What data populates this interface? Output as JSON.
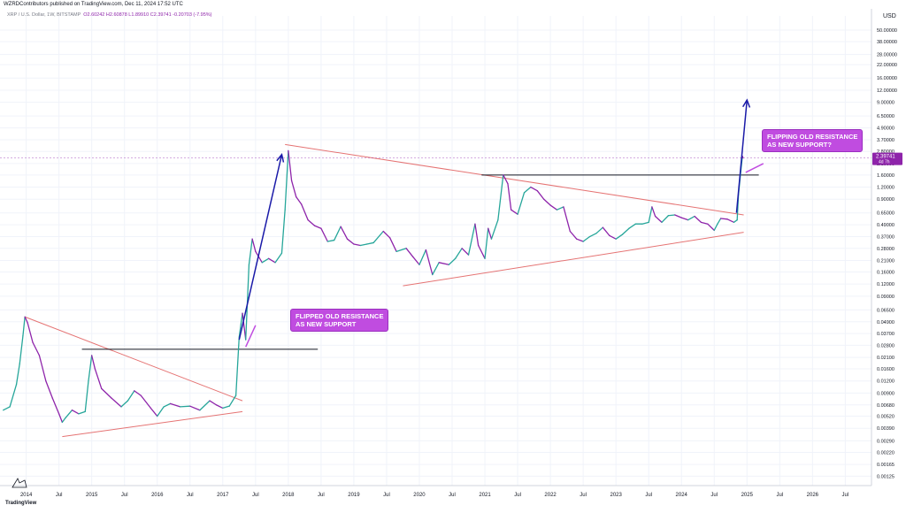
{
  "header": {
    "publisher_line": "WZRDContributors published on TradingView.com, Dec 11, 2024 17:52 UTC",
    "symbol": "XRP / U.S. Dollar, 1W, BITSTAMP",
    "open": "O2.60242",
    "high": "H2.60878",
    "low": "L1.89910",
    "close": "C2.39741",
    "change": "-0.20703 (-7.95%)"
  },
  "footer": {
    "logo_text": "TradingView"
  },
  "annotations": {
    "callout_1": [
      "FLIPPED OLD RESISTANCE",
      "AS NEW SUPPORT"
    ],
    "callout_2": [
      "FLIPPING OLD RESISTANCE",
      "AS NEW SUPPORT?"
    ]
  },
  "colors": {
    "bull": "#26a69a",
    "bear": "#8e24aa",
    "trendline": "#e57373",
    "horizontal": "#131722",
    "arrow": "#1a1aa8",
    "callout": "#c04ce0",
    "price_tag": "#8e24aa"
  },
  "chart_data": {
    "type": "line",
    "scale": "log",
    "y_unit": "USD",
    "x_ticks": [
      "2014",
      "Jul",
      "2015",
      "Jul",
      "2016",
      "Jul",
      "2017",
      "Jul",
      "2018",
      "Jul",
      "2019",
      "Jul",
      "2020",
      "Jul",
      "2021",
      "Jul",
      "2022",
      "Jul",
      "2023",
      "Jul",
      "2024",
      "Jul",
      "2025",
      "Jul",
      "2026",
      "Jul"
    ],
    "y_ticks": [
      0.00125,
      0.00165,
      0.0022,
      0.0029,
      0.0039,
      0.0052,
      0.0068,
      0.009,
      0.012,
      0.016,
      0.021,
      0.028,
      0.037,
      0.049,
      0.065,
      0.09,
      0.12,
      0.16,
      0.21,
      0.28,
      0.37,
      0.49,
      0.65,
      0.9,
      1.2,
      1.6,
      2.1,
      2.8,
      3.7,
      4.9,
      6.5,
      9.0,
      12.0,
      16.0,
      22.0,
      28.0,
      38.0,
      50.0
    ],
    "y_tick_labels": [
      "0.00125",
      "0.00165",
      "0.00220",
      "0.00290",
      "0.00390",
      "0.00520",
      "0.00680",
      "0.00900",
      "0.01200",
      "0.01600",
      "0.02100",
      "0.02800",
      "0.03700",
      "0.04900",
      "0.06500",
      "0.09000",
      "0.12000",
      "0.16000",
      "0.21000",
      "0.28000",
      "0.37000",
      "0.49000",
      "0.65000",
      "0.90000",
      "1.20000",
      "1.60000",
      "2.10000",
      "2.80000",
      "3.70000",
      "4.90000",
      "6.50000",
      "9.00000",
      "12.00000",
      "16.00000",
      "22.00000",
      "28.00000",
      "38.00000",
      "50.00000"
    ],
    "ylim": [
      0.001,
      70
    ],
    "xlim": [
      2013.6,
      2026.9
    ],
    "last_price": 2.39741,
    "last_price_label": "2.39741",
    "countdown": "4d 7h",
    "series": [
      {
        "values": [
          [
            2013.65,
            0.006
          ],
          [
            2013.75,
            0.0065
          ],
          [
            2013.85,
            0.011
          ],
          [
            2013.9,
            0.018
          ],
          [
            2013.95,
            0.035
          ],
          [
            2013.98,
            0.055
          ],
          [
            2014.02,
            0.048
          ],
          [
            2014.1,
            0.03
          ],
          [
            2014.2,
            0.022
          ],
          [
            2014.3,
            0.012
          ],
          [
            2014.4,
            0.008
          ],
          [
            2014.5,
            0.0055
          ],
          [
            2014.55,
            0.0045
          ],
          [
            2014.6,
            0.005
          ],
          [
            2014.7,
            0.006
          ],
          [
            2014.8,
            0.0055
          ],
          [
            2014.9,
            0.0058
          ],
          [
            2014.95,
            0.012
          ],
          [
            2015.0,
            0.022
          ],
          [
            2015.05,
            0.016
          ],
          [
            2015.15,
            0.01
          ],
          [
            2015.3,
            0.008
          ],
          [
            2015.45,
            0.0065
          ],
          [
            2015.55,
            0.0075
          ],
          [
            2015.65,
            0.0095
          ],
          [
            2015.75,
            0.0085
          ],
          [
            2015.9,
            0.0063
          ],
          [
            2016.0,
            0.0052
          ],
          [
            2016.1,
            0.0065
          ],
          [
            2016.2,
            0.007
          ],
          [
            2016.35,
            0.0065
          ],
          [
            2016.5,
            0.0066
          ],
          [
            2016.65,
            0.006
          ],
          [
            2016.8,
            0.0075
          ],
          [
            2016.9,
            0.0068
          ],
          [
            2017.0,
            0.0063
          ],
          [
            2017.1,
            0.0066
          ],
          [
            2017.2,
            0.0085
          ],
          [
            2017.25,
            0.034
          ],
          [
            2017.3,
            0.06
          ],
          [
            2017.35,
            0.032
          ],
          [
            2017.4,
            0.19
          ],
          [
            2017.45,
            0.35
          ],
          [
            2017.5,
            0.26
          ],
          [
            2017.6,
            0.2
          ],
          [
            2017.7,
            0.22
          ],
          [
            2017.8,
            0.2
          ],
          [
            2017.9,
            0.25
          ],
          [
            2017.95,
            0.7
          ],
          [
            2018.0,
            2.85
          ],
          [
            2018.05,
            1.4
          ],
          [
            2018.12,
            0.95
          ],
          [
            2018.2,
            0.8
          ],
          [
            2018.3,
            0.55
          ],
          [
            2018.4,
            0.48
          ],
          [
            2018.5,
            0.45
          ],
          [
            2018.6,
            0.33
          ],
          [
            2018.7,
            0.34
          ],
          [
            2018.8,
            0.47
          ],
          [
            2018.9,
            0.35
          ],
          [
            2019.0,
            0.31
          ],
          [
            2019.1,
            0.3
          ],
          [
            2019.2,
            0.31
          ],
          [
            2019.3,
            0.32
          ],
          [
            2019.45,
            0.42
          ],
          [
            2019.55,
            0.36
          ],
          [
            2019.65,
            0.26
          ],
          [
            2019.8,
            0.28
          ],
          [
            2019.9,
            0.23
          ],
          [
            2020.0,
            0.19
          ],
          [
            2020.1,
            0.27
          ],
          [
            2020.2,
            0.15
          ],
          [
            2020.3,
            0.2
          ],
          [
            2020.45,
            0.19
          ],
          [
            2020.55,
            0.22
          ],
          [
            2020.65,
            0.28
          ],
          [
            2020.75,
            0.24
          ],
          [
            2020.85,
            0.5
          ],
          [
            2020.9,
            0.3
          ],
          [
            2021.0,
            0.22
          ],
          [
            2021.05,
            0.45
          ],
          [
            2021.1,
            0.35
          ],
          [
            2021.2,
            0.55
          ],
          [
            2021.28,
            1.6
          ],
          [
            2021.35,
            1.3
          ],
          [
            2021.4,
            0.7
          ],
          [
            2021.5,
            0.63
          ],
          [
            2021.6,
            1.05
          ],
          [
            2021.7,
            1.2
          ],
          [
            2021.8,
            1.1
          ],
          [
            2021.9,
            0.9
          ],
          [
            2022.0,
            0.78
          ],
          [
            2022.1,
            0.7
          ],
          [
            2022.2,
            0.75
          ],
          [
            2022.3,
            0.42
          ],
          [
            2022.4,
            0.35
          ],
          [
            2022.5,
            0.33
          ],
          [
            2022.6,
            0.37
          ],
          [
            2022.7,
            0.4
          ],
          [
            2022.8,
            0.46
          ],
          [
            2022.9,
            0.38
          ],
          [
            2023.0,
            0.35
          ],
          [
            2023.1,
            0.39
          ],
          [
            2023.2,
            0.45
          ],
          [
            2023.3,
            0.5
          ],
          [
            2023.4,
            0.5
          ],
          [
            2023.5,
            0.52
          ],
          [
            2023.55,
            0.75
          ],
          [
            2023.6,
            0.6
          ],
          [
            2023.7,
            0.52
          ],
          [
            2023.8,
            0.61
          ],
          [
            2023.9,
            0.62
          ],
          [
            2024.0,
            0.58
          ],
          [
            2024.1,
            0.55
          ],
          [
            2024.2,
            0.6
          ],
          [
            2024.3,
            0.52
          ],
          [
            2024.4,
            0.5
          ],
          [
            2024.5,
            0.43
          ],
          [
            2024.55,
            0.5
          ],
          [
            2024.6,
            0.57
          ],
          [
            2024.7,
            0.56
          ],
          [
            2024.8,
            0.52
          ],
          [
            2024.85,
            0.55
          ],
          [
            2024.87,
            1.0
          ],
          [
            2024.9,
            1.6
          ],
          [
            2024.93,
            2.5
          ],
          [
            2024.94,
            2.4
          ]
        ]
      }
    ],
    "trendlines": [
      {
        "points": [
          [
            2013.98,
            0.055
          ],
          [
            2017.3,
            0.0075
          ]
        ]
      },
      {
        "points": [
          [
            2014.55,
            0.0032
          ],
          [
            2017.3,
            0.0058
          ]
        ]
      },
      {
        "points": [
          [
            2017.95,
            3.3
          ],
          [
            2024.95,
            0.62
          ]
        ]
      },
      {
        "points": [
          [
            2019.75,
            0.115
          ],
          [
            2024.95,
            0.41
          ]
        ]
      }
    ],
    "horizontals": [
      {
        "y": 0.0255,
        "x": [
          2014.85,
          2018.45
        ]
      },
      {
        "y": 1.6,
        "x": [
          2020.95,
          2025.18
        ]
      }
    ],
    "arrows": [
      {
        "from": [
          2017.25,
          0.032
        ],
        "to": [
          2017.9,
          2.6
        ]
      },
      {
        "from": [
          2024.84,
          0.65
        ],
        "to": [
          2025.0,
          9.5
        ]
      }
    ],
    "callout_pointers": [
      {
        "from": [
          2017.5,
          0.045
        ],
        "to": [
          2017.35,
          0.027
        ]
      },
      {
        "from": [
          2025.25,
          2.1
        ],
        "to": [
          2024.98,
          1.7
        ]
      }
    ]
  }
}
